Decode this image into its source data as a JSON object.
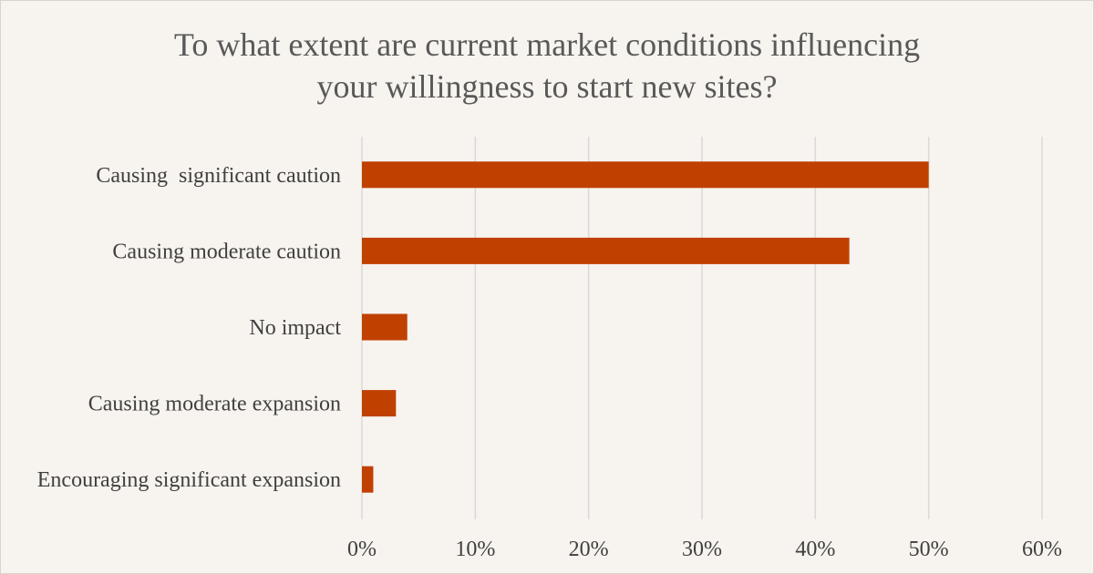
{
  "chart_data": {
    "type": "bar",
    "orientation": "horizontal",
    "title_lines": [
      "To what extent are current market conditions influencing",
      "your willingness to start new sites?"
    ],
    "categories": [
      "Causing  significant caution",
      "Causing moderate caution",
      "No impact",
      "Causing moderate expansion",
      "Encouraging significant expansion"
    ],
    "values": [
      50,
      43,
      4,
      3,
      1
    ],
    "unit": "%",
    "xlim": [
      0,
      60
    ],
    "xticks": [
      "0%",
      "10%",
      "20%",
      "30%",
      "40%",
      "50%",
      "60%"
    ],
    "grid": true,
    "legend": false,
    "colors": {
      "bar": "#c04000",
      "grid": "#d9d9d9",
      "background": "#f7f3ee",
      "text": "#404040"
    }
  }
}
